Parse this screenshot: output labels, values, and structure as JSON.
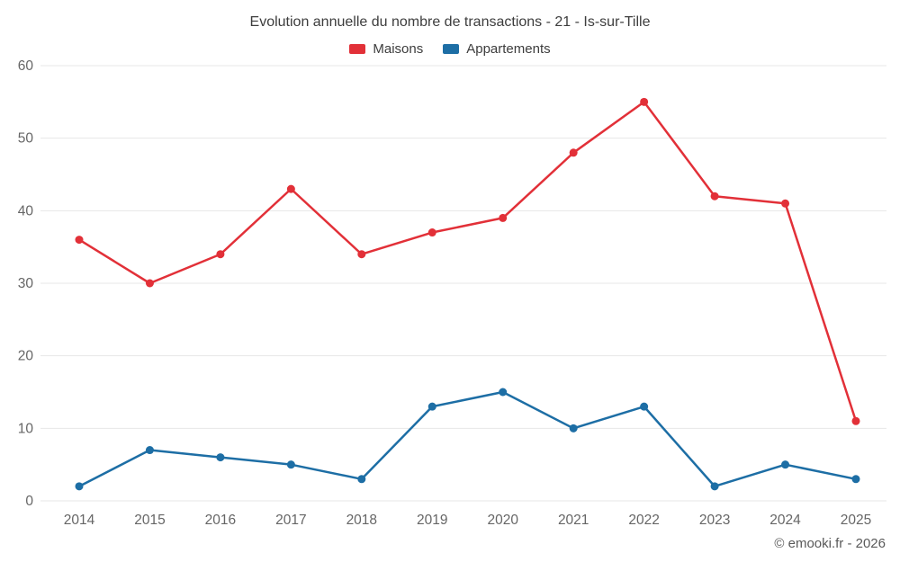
{
  "chart_data": {
    "type": "line",
    "title": "Evolution annuelle du nombre de transactions - 21 - Is-sur-Tille",
    "categories": [
      "2014",
      "2015",
      "2016",
      "2017",
      "2018",
      "2019",
      "2020",
      "2021",
      "2022",
      "2023",
      "2024",
      "2025"
    ],
    "series": [
      {
        "name": "Maisons",
        "color": "#e23038",
        "values": [
          36,
          30,
          34,
          43,
          34,
          37,
          39,
          48,
          55,
          42,
          41,
          11
        ]
      },
      {
        "name": "Appartements",
        "color": "#1d6ea5",
        "values": [
          2,
          7,
          6,
          5,
          3,
          13,
          15,
          10,
          13,
          2,
          5,
          3
        ]
      }
    ],
    "xlabel": "",
    "ylabel": "",
    "ylim": [
      0,
      60
    ],
    "ytick": 10,
    "grid": "horizontal",
    "gridline_color": "#e7e7e7",
    "tick_label_color": "#666666",
    "legend_position": "top"
  },
  "footer": {
    "credit": "© emooki.fr - 2026"
  }
}
